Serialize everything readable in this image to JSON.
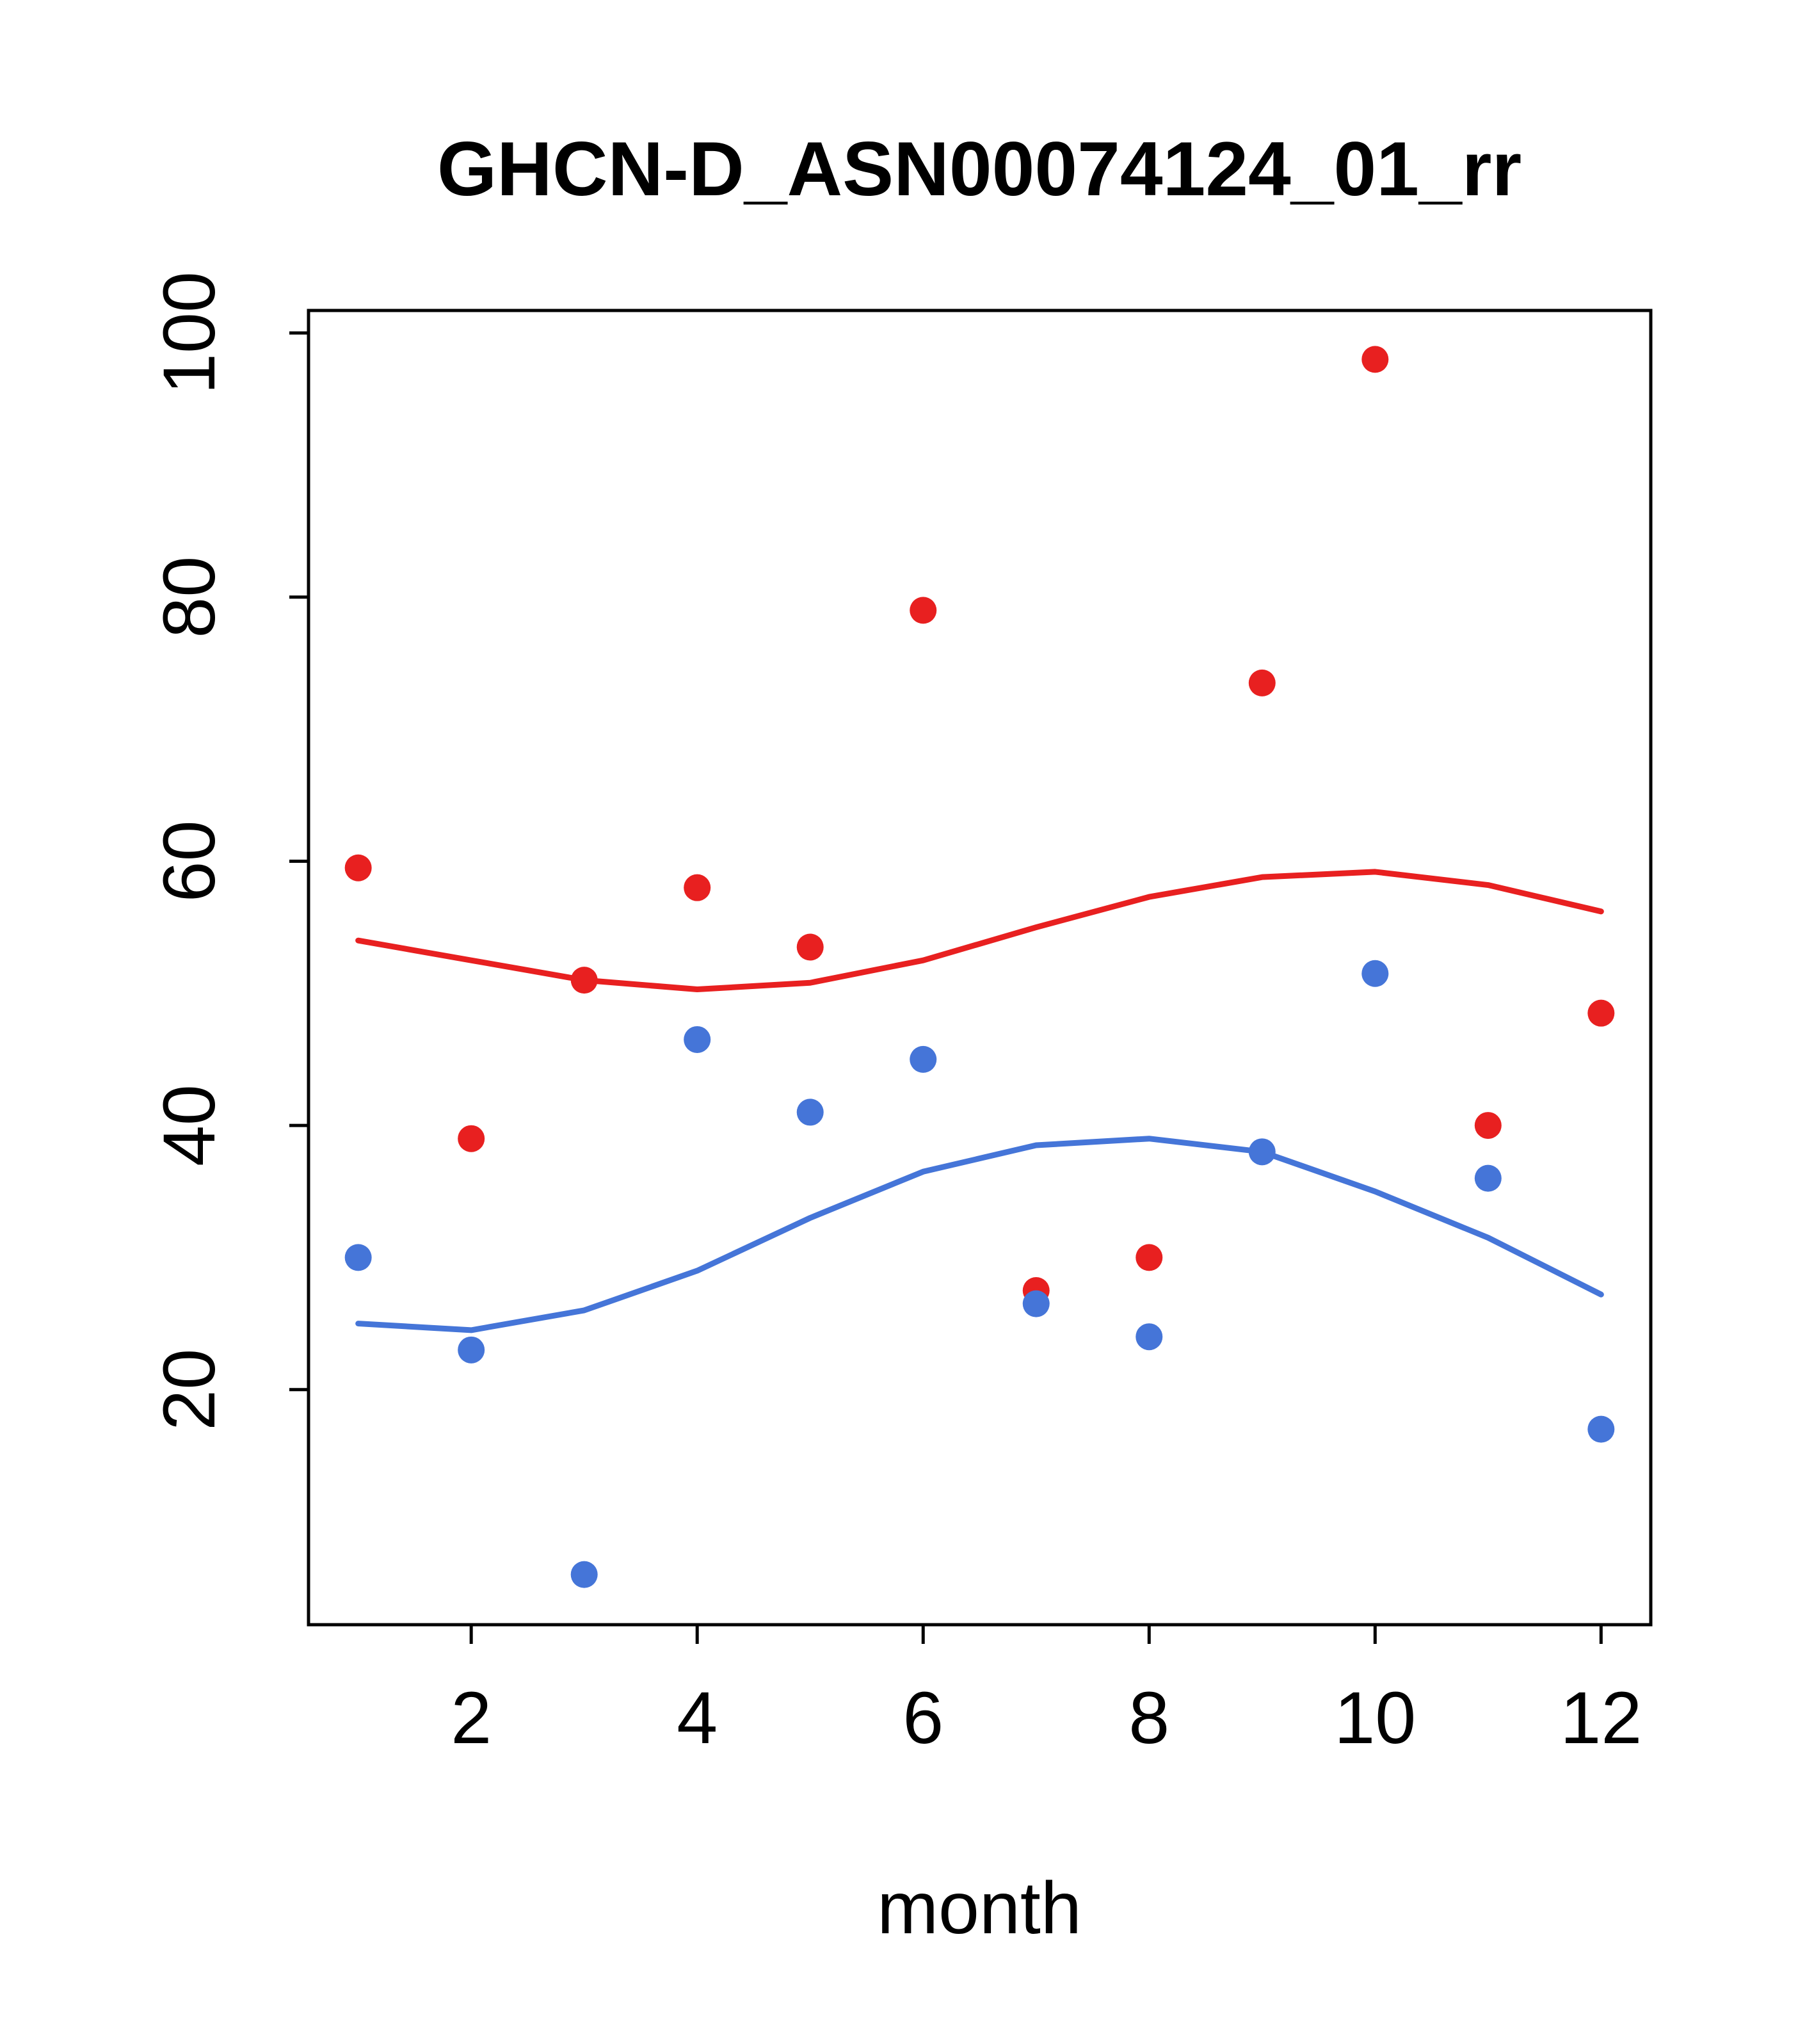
{
  "page": {
    "background": "#ffffff"
  },
  "chart_data": {
    "type": "scatter",
    "title": "GHCN-D_ASN00074124_01_rr",
    "xlabel": "month",
    "ylabel": "",
    "x_ticks": [
      2,
      4,
      6,
      8,
      10,
      12
    ],
    "y_ticks": [
      20,
      40,
      60,
      80,
      100
    ],
    "xlim": [
      0.56,
      12.44
    ],
    "ylim": [
      2.2,
      101.7
    ],
    "grid": false,
    "legend": "none",
    "colors": {
      "red_series": "#e82020",
      "blue_series": "#4575d8"
    },
    "categories": [
      1,
      2,
      3,
      4,
      5,
      6,
      7,
      8,
      9,
      10,
      11,
      12
    ],
    "series": [
      {
        "name": "red-points",
        "kind": "points",
        "color": "#e82020",
        "x": [
          1,
          2,
          3,
          4,
          5,
          6,
          7,
          8,
          9,
          10,
          11,
          12
        ],
        "values": [
          59.5,
          39,
          51,
          58,
          53.5,
          79,
          27.5,
          30,
          73.5,
          98,
          40,
          48.5
        ]
      },
      {
        "name": "blue-points",
        "kind": "points",
        "color": "#4575d8",
        "x": [
          1,
          2,
          3,
          4,
          5,
          6,
          7,
          8,
          9,
          10,
          11,
          12
        ],
        "values": [
          30,
          23,
          6,
          46.5,
          41,
          45,
          26.5,
          24,
          38,
          51.5,
          36,
          17
        ]
      },
      {
        "name": "red-trend",
        "kind": "line",
        "color": "#e82020",
        "x": [
          1,
          2,
          3,
          4,
          5,
          6,
          7,
          8,
          9,
          10,
          11,
          12
        ],
        "values": [
          54,
          52.5,
          51,
          50.3,
          50.8,
          52.5,
          55,
          57.3,
          58.8,
          59.2,
          58.2,
          56.2
        ]
      },
      {
        "name": "blue-trend",
        "kind": "line",
        "color": "#4575d8",
        "x": [
          1,
          2,
          3,
          4,
          5,
          6,
          7,
          8,
          9,
          10,
          11,
          12
        ],
        "values": [
          25,
          24.5,
          26,
          29,
          33,
          36.5,
          38.5,
          39,
          38,
          35,
          31.5,
          27.2
        ]
      }
    ]
  }
}
